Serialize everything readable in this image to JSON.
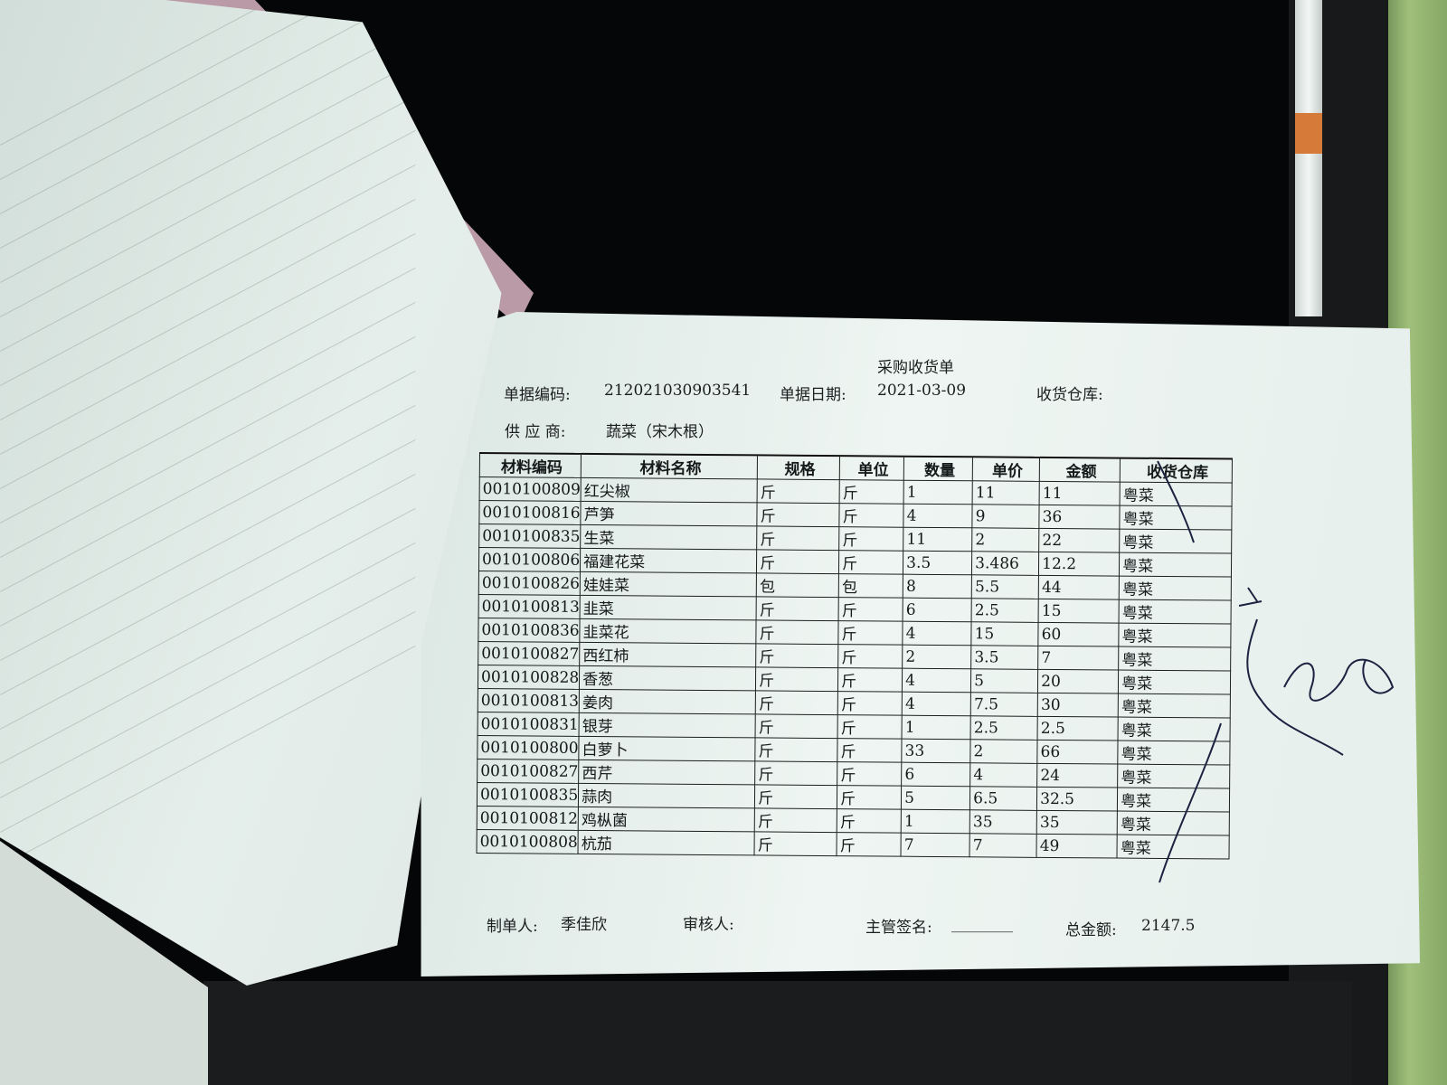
{
  "document": {
    "title": "采购收货单",
    "doc_no_label": "单据编码:",
    "doc_no": "212021030903541",
    "doc_date_label": "单据日期:",
    "doc_date": "2021-03-09",
    "warehouse_label": "收货仓库:",
    "supplier_label": "供 应 商:",
    "supplier": "蔬菜（宋木根）"
  },
  "table": {
    "headers": [
      "材料编码",
      "材料名称",
      "规格",
      "单位",
      "数量",
      "单价",
      "金额",
      "收货仓库"
    ],
    "rows": [
      [
        "0010100809",
        "红尖椒",
        "斤",
        "斤",
        "1",
        "11",
        "11",
        "粤菜"
      ],
      [
        "0010100816",
        "芦笋",
        "斤",
        "斤",
        "4",
        "9",
        "36",
        "粤菜"
      ],
      [
        "0010100835",
        "生菜",
        "斤",
        "斤",
        "11",
        "2",
        "22",
        "粤菜"
      ],
      [
        "0010100806",
        "福建花菜",
        "斤",
        "斤",
        "3.5",
        "3.486",
        "12.2",
        "粤菜"
      ],
      [
        "0010100826",
        "娃娃菜",
        "包",
        "包",
        "8",
        "5.5",
        "44",
        "粤菜"
      ],
      [
        "0010100813",
        "韭菜",
        "斤",
        "斤",
        "6",
        "2.5",
        "15",
        "粤菜"
      ],
      [
        "0010100836",
        "韭菜花",
        "斤",
        "斤",
        "4",
        "15",
        "60",
        "粤菜"
      ],
      [
        "0010100827",
        "西红柿",
        "斤",
        "斤",
        "2",
        "3.5",
        "7",
        "粤菜"
      ],
      [
        "0010100828",
        "香葱",
        "斤",
        "斤",
        "4",
        "5",
        "20",
        "粤菜"
      ],
      [
        "0010100813",
        "姜肉",
        "斤",
        "斤",
        "4",
        "7.5",
        "30",
        "粤菜"
      ],
      [
        "0010100831",
        "银芽",
        "斤",
        "斤",
        "1",
        "2.5",
        "2.5",
        "粤菜"
      ],
      [
        "0010100800",
        "白萝卜",
        "斤",
        "斤",
        "33",
        "2",
        "66",
        "粤菜"
      ],
      [
        "0010100827",
        "西芹",
        "斤",
        "斤",
        "6",
        "4",
        "24",
        "粤菜"
      ],
      [
        "0010100835",
        "蒜肉",
        "斤",
        "斤",
        "5",
        "6.5",
        "32.5",
        "粤菜"
      ],
      [
        "0010100812",
        "鸡枞菌",
        "斤",
        "斤",
        "1",
        "35",
        "35",
        "粤菜"
      ],
      [
        "0010100808",
        "杭茄",
        "斤",
        "斤",
        "7",
        "7",
        "49",
        "粤菜"
      ]
    ]
  },
  "footer": {
    "maker_label": "制单人:",
    "maker": "季佳欣",
    "reviewer_label": "审核人:",
    "supervisor_label": "主管签名:",
    "supervisor_blank": "________",
    "total_label": "总金额:",
    "total": "2147.5"
  },
  "colors": {
    "paper": "#e6efec",
    "ink": "#1a1e1f",
    "background": "#050607"
  }
}
